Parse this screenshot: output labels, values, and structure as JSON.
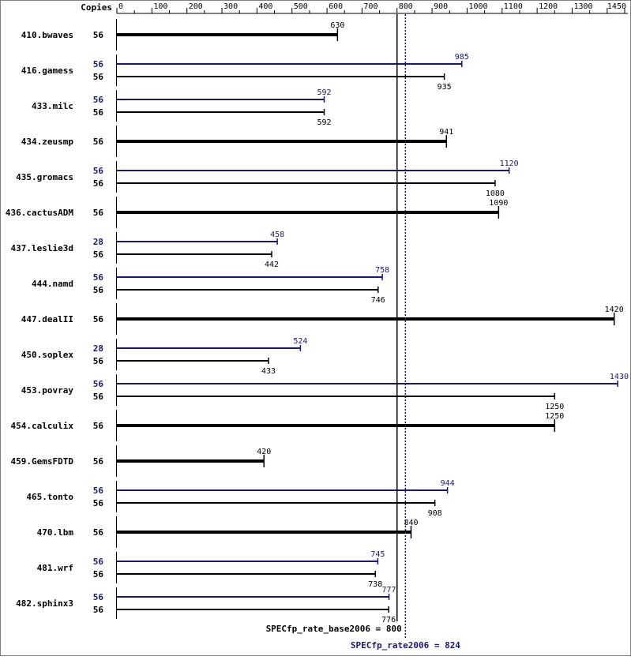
{
  "chart_data": {
    "type": "bar",
    "header": {
      "copies_label": "Copies"
    },
    "x_axis": {
      "min": 0,
      "max": 1450,
      "ticks": [
        0,
        100,
        200,
        300,
        400,
        500,
        600,
        700,
        800,
        900,
        1000,
        1100,
        1200,
        1300,
        1450
      ]
    },
    "series_colors": {
      "base": "#000000",
      "peak": "#191970"
    },
    "benchmarks": [
      {
        "name": "410.bwaves",
        "base_copies": "56",
        "base_value": 630,
        "base_label": "630"
      },
      {
        "name": "416.gamess",
        "peak_copies": "56",
        "peak_value": 985,
        "peak_label": "985",
        "base_copies": "56",
        "base_value": 935,
        "base_label": "935"
      },
      {
        "name": "433.milc",
        "peak_copies": "56",
        "peak_value": 592,
        "peak_label": "592",
        "base_copies": "56",
        "base_value": 592,
        "base_label": "592"
      },
      {
        "name": "434.zeusmp",
        "base_copies": "56",
        "base_value": 941,
        "base_label": "941"
      },
      {
        "name": "435.gromacs",
        "peak_copies": "56",
        "peak_value": 1120,
        "peak_label": "1120",
        "base_copies": "56",
        "base_value": 1080,
        "base_label": "1080"
      },
      {
        "name": "436.cactusADM",
        "base_copies": "56",
        "base_value": 1090,
        "base_label": "1090"
      },
      {
        "name": "437.leslie3d",
        "peak_copies": "28",
        "peak_value": 458,
        "peak_label": "458",
        "base_copies": "56",
        "base_value": 442,
        "base_label": "442"
      },
      {
        "name": "444.namd",
        "peak_copies": "56",
        "peak_value": 758,
        "peak_label": "758",
        "base_copies": "56",
        "base_value": 746,
        "base_label": "746"
      },
      {
        "name": "447.dealII",
        "base_copies": "56",
        "base_value": 1420,
        "base_label": "1420"
      },
      {
        "name": "450.soplex",
        "peak_copies": "28",
        "peak_value": 524,
        "peak_label": "524",
        "base_copies": "56",
        "base_value": 433,
        "base_label": "433"
      },
      {
        "name": "453.povray",
        "peak_copies": "56",
        "peak_value": 1430,
        "peak_label": "1430",
        "base_copies": "56",
        "base_value": 1250,
        "base_label": "1250"
      },
      {
        "name": "454.calculix",
        "base_copies": "56",
        "base_value": 1250,
        "base_label": "1250"
      },
      {
        "name": "459.GemsFDTD",
        "base_copies": "56",
        "base_value": 420,
        "base_label": "420"
      },
      {
        "name": "465.tonto",
        "peak_copies": "56",
        "peak_value": 944,
        "peak_label": "944",
        "base_copies": "56",
        "base_value": 908,
        "base_label": "908"
      },
      {
        "name": "470.lbm",
        "base_copies": "56",
        "base_value": 840,
        "base_label": "840"
      },
      {
        "name": "481.wrf",
        "peak_copies": "56",
        "peak_value": 745,
        "peak_label": "745",
        "base_copies": "56",
        "base_value": 738,
        "base_label": "738"
      },
      {
        "name": "482.sphinx3",
        "peak_copies": "56",
        "peak_value": 777,
        "peak_label": "777",
        "base_copies": "56",
        "base_value": 776,
        "base_label": "776"
      }
    ],
    "reference_lines": {
      "base": {
        "value": 800,
        "label": "SPECfp_rate_base2006 = 800"
      },
      "peak": {
        "value": 824,
        "label": "SPECfp_rate2006 = 824"
      }
    }
  }
}
